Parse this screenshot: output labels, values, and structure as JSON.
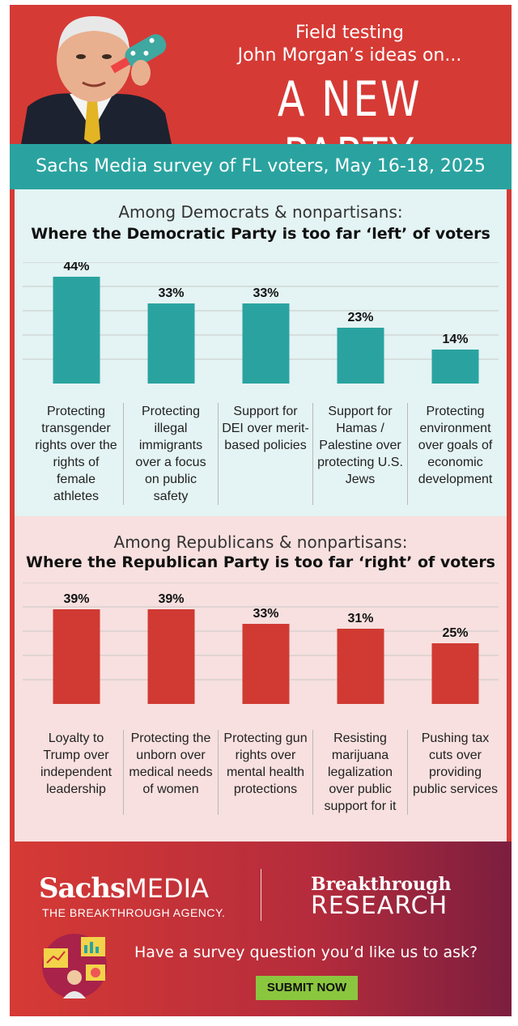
{
  "header": {
    "line1": "Field testing",
    "line2": "John Morgan’s ideas on...",
    "line3": "A NEW PARTY"
  },
  "banner": "Sachs Media survey of FL voters, May 16-18, 2025",
  "colors": {
    "red": "#d63a35",
    "teal": "#2aa3a0",
    "dem_bar": "#2aa3a0",
    "rep_bar": "#d03a32",
    "dem_panel": "#e4f3f3",
    "rep_panel": "#f7e0df",
    "button": "#8bc63f"
  },
  "chart_data": [
    {
      "type": "bar",
      "subtitle": "Among Democrats & nonpartisans:",
      "title": "Where the Democratic Party is too far ‘left’ of voters",
      "categories": [
        "Protecting transgender rights over the rights of female athletes",
        "Protecting illegal immigrants over a focus on public safety",
        "Support for DEI over merit-based policies",
        "Support for Hamas / Palestine over protecting U.S. Jews",
        "Protecting environment over goals of economic development"
      ],
      "values": [
        44,
        33,
        33,
        23,
        14
      ],
      "labels": [
        "44%",
        "33%",
        "33%",
        "23%",
        "14%"
      ],
      "ylim": [
        0,
        50
      ],
      "grid": true,
      "legend": "none"
    },
    {
      "type": "bar",
      "subtitle": "Among Republicans & nonpartisans:",
      "title": "Where the Republican Party is too far ‘right’ of voters",
      "categories": [
        "Loyalty to Trump over independent leadership",
        "Protecting the unborn over medical needs of women",
        "Protecting gun rights over mental health protections",
        "Resisting marijuana legalization over public support for it",
        "Pushing tax cuts over providing public services"
      ],
      "values": [
        39,
        39,
        33,
        31,
        25
      ],
      "labels": [
        "39%",
        "39%",
        "33%",
        "31%",
        "25%"
      ],
      "ylim": [
        0,
        50
      ],
      "grid": true,
      "legend": "none"
    }
  ],
  "footer": {
    "logo_sachs": "Sachs",
    "logo_media": "MEDIA",
    "logo_tagline": "THE BREAKTHROUGH AGENCY.",
    "logo_breakthrough": "Breakthrough",
    "logo_research": "RESEARCH",
    "ask_text": "Have a survey question you’d like us to ask?",
    "submit_label": "SUBMIT NOW"
  }
}
